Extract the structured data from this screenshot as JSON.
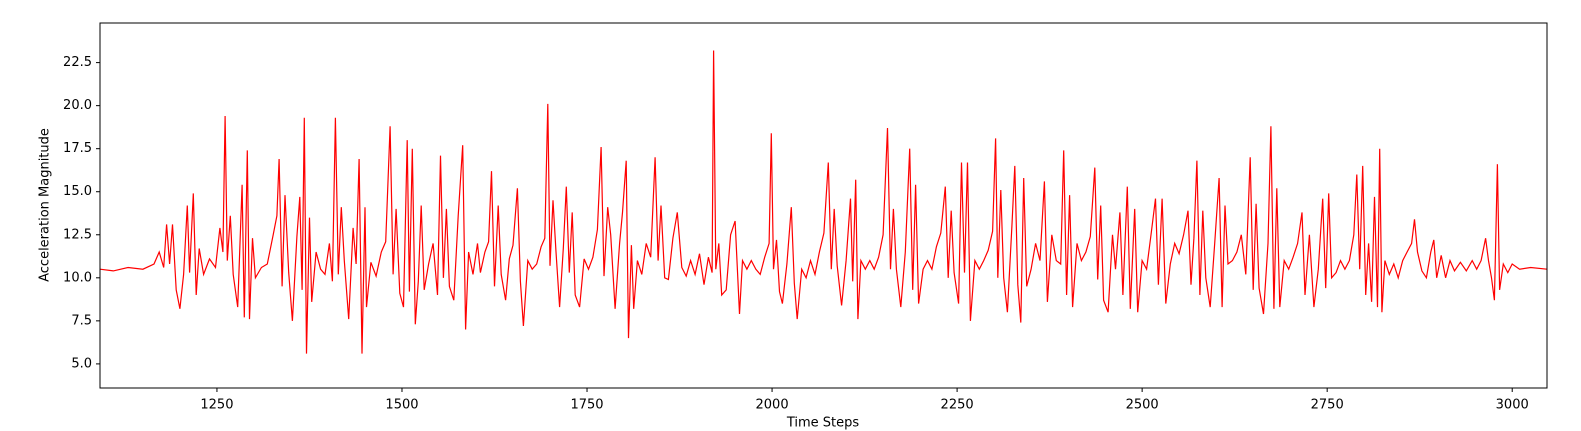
{
  "chart_data": {
    "type": "line",
    "x_label": "Time Steps",
    "y_label": "Acceleration Magnitude",
    "xlim": [
      1092,
      3047
    ],
    "ylim": [
      3.6,
      24.8
    ],
    "xticks": [
      1250,
      1500,
      1750,
      2000,
      2250,
      2500,
      2750,
      3000
    ],
    "yticks": [
      {
        "value": 5,
        "label": "5.0"
      },
      {
        "value": 7.5,
        "label": "7.5"
      },
      {
        "value": 10,
        "label": "10.0"
      },
      {
        "value": 12.5,
        "label": "12.5"
      },
      {
        "value": 15,
        "label": "15.0"
      },
      {
        "value": 17.5,
        "label": "17.5"
      },
      {
        "value": 20,
        "label": "20.0"
      },
      {
        "value": 22.5,
        "label": "22.5"
      }
    ],
    "series": [
      {
        "color": "#ff0000",
        "x": [
          1092,
          1110,
          1130,
          1150,
          1165,
          1172,
          1178,
          1182,
          1186,
          1190,
          1195,
          1200,
          1205,
          1210,
          1213,
          1218,
          1222,
          1226,
          1232,
          1240,
          1248,
          1254,
          1258,
          1261,
          1264,
          1268,
          1272,
          1278,
          1284,
          1287,
          1291,
          1294,
          1298,
          1302,
          1310,
          1318,
          1326,
          1331,
          1334,
          1338,
          1342,
          1347,
          1352,
          1358,
          1362,
          1365,
          1368,
          1371,
          1375,
          1378,
          1384,
          1390,
          1396,
          1402,
          1406,
          1410,
          1414,
          1418,
          1422,
          1428,
          1434,
          1438,
          1442,
          1446,
          1450,
          1452,
          1458,
          1465,
          1472,
          1478,
          1484,
          1488,
          1492,
          1497,
          1502,
          1507,
          1510,
          1514,
          1518,
          1522,
          1526,
          1530,
          1536,
          1542,
          1548,
          1552,
          1556,
          1560,
          1564,
          1570,
          1576,
          1582,
          1586,
          1590,
          1596,
          1602,
          1606,
          1612,
          1617,
          1621,
          1625,
          1630,
          1634,
          1640,
          1645,
          1650,
          1656,
          1660,
          1664,
          1670,
          1676,
          1682,
          1688,
          1693,
          1697,
          1700,
          1704,
          1708,
          1713,
          1718,
          1722,
          1726,
          1730,
          1734,
          1740,
          1746,
          1752,
          1758,
          1764,
          1769,
          1773,
          1778,
          1782,
          1788,
          1794,
          1798,
          1803,
          1806,
          1810,
          1813,
          1818,
          1824,
          1830,
          1836,
          1842,
          1846,
          1850,
          1855,
          1860,
          1866,
          1872,
          1878,
          1884,
          1890,
          1896,
          1902,
          1908,
          1914,
          1919,
          1921,
          1924,
          1928,
          1932,
          1938,
          1944,
          1950,
          1956,
          1960,
          1966,
          1972,
          1978,
          1984,
          1990,
          1996,
          1999,
          2002,
          2006,
          2010,
          2014,
          2020,
          2026,
          2030,
          2034,
          2040,
          2046,
          2052,
          2058,
          2064,
          2070,
          2076,
          2080,
          2084,
          2088,
          2094,
          2100,
          2106,
          2109,
          2113,
          2116,
          2120,
          2126,
          2132,
          2138,
          2144,
          2150,
          2156,
          2160,
          2164,
          2168,
          2174,
          2180,
          2186,
          2190,
          2194,
          2198,
          2204,
          2210,
          2216,
          2222,
          2228,
          2234,
          2238,
          2242,
          2246,
          2252,
          2256,
          2260,
          2264,
          2268,
          2274,
          2280,
          2286,
          2292,
          2298,
          2302,
          2305,
          2309,
          2313,
          2318,
          2324,
          2328,
          2332,
          2336,
          2340,
          2344,
          2350,
          2356,
          2362,
          2368,
          2372,
          2378,
          2384,
          2390,
          2394,
          2398,
          2402,
          2406,
          2412,
          2418,
          2424,
          2430,
          2436,
          2440,
          2444,
          2448,
          2454,
          2460,
          2464,
          2470,
          2474,
          2480,
          2484,
          2490,
          2494,
          2500,
          2506,
          2512,
          2518,
          2522,
          2527,
          2532,
          2538,
          2544,
          2550,
          2556,
          2562,
          2566,
          2570,
          2574,
          2578,
          2582,
          2586,
          2592,
          2598,
          2604,
          2608,
          2612,
          2616,
          2622,
          2628,
          2634,
          2640,
          2646,
          2650,
          2654,
          2658,
          2664,
          2670,
          2674,
          2678,
          2682,
          2686,
          2692,
          2698,
          2704,
          2710,
          2716,
          2720,
          2726,
          2732,
          2738,
          2744,
          2748,
          2752,
          2756,
          2762,
          2768,
          2774,
          2780,
          2786,
          2790,
          2794,
          2798,
          2802,
          2806,
          2810,
          2814,
          2818,
          2821,
          2824,
          2828,
          2834,
          2840,
          2846,
          2852,
          2858,
          2864,
          2868,
          2872,
          2878,
          2884,
          2890,
          2894,
          2898,
          2904,
          2910,
          2916,
          2922,
          2930,
          2938,
          2946,
          2952,
          2958,
          2964,
          2968,
          2972,
          2976,
          2980,
          2983,
          2988,
          2994,
          3000,
          3010,
          3025,
          3047
        ],
        "values": [
          10.5,
          10.4,
          10.6,
          10.5,
          10.8,
          11.5,
          10.6,
          13.1,
          10.8,
          13.1,
          9.3,
          8.2,
          10.2,
          14.2,
          10.3,
          14.9,
          9.0,
          11.7,
          10.2,
          11.1,
          10.6,
          12.9,
          11.5,
          19.4,
          11.0,
          13.6,
          10.2,
          8.3,
          15.4,
          7.7,
          17.4,
          7.6,
          12.3,
          10.0,
          10.6,
          10.8,
          12.5,
          13.6,
          16.9,
          9.5,
          14.8,
          10.3,
          7.5,
          12.4,
          14.7,
          9.3,
          19.3,
          5.6,
          13.5,
          8.6,
          11.5,
          10.5,
          10.2,
          12.0,
          9.8,
          19.3,
          10.2,
          14.1,
          11.0,
          7.6,
          12.9,
          10.8,
          16.9,
          5.6,
          14.1,
          8.3,
          10.9,
          10.1,
          11.5,
          12.1,
          18.8,
          10.2,
          14.0,
          9.1,
          8.3,
          18.0,
          9.2,
          17.5,
          7.3,
          9.8,
          14.2,
          9.3,
          10.8,
          12.0,
          9.0,
          17.1,
          10.0,
          14.0,
          9.5,
          8.7,
          13.6,
          17.7,
          7.0,
          11.5,
          10.2,
          12.0,
          10.3,
          11.5,
          12.1,
          16.2,
          9.5,
          14.2,
          10.2,
          8.7,
          11.1,
          11.9,
          15.2,
          9.8,
          7.2,
          11.0,
          10.5,
          10.8,
          11.8,
          12.3,
          20.1,
          10.7,
          14.5,
          11.6,
          8.3,
          11.7,
          15.3,
          10.3,
          13.8,
          9.0,
          8.3,
          11.1,
          10.5,
          11.2,
          12.8,
          17.6,
          10.1,
          14.1,
          12.5,
          8.2,
          12.0,
          13.8,
          16.8,
          6.5,
          11.9,
          8.2,
          11.0,
          10.2,
          12.0,
          11.2,
          17.0,
          11.0,
          14.2,
          10.0,
          9.9,
          12.3,
          13.8,
          10.6,
          10.1,
          11.0,
          10.2,
          11.4,
          9.6,
          11.2,
          10.3,
          23.2,
          10.5,
          12.0,
          9.0,
          9.3,
          12.5,
          13.3,
          7.9,
          11.0,
          10.5,
          11.0,
          10.5,
          10.2,
          11.2,
          12.0,
          18.4,
          10.5,
          12.2,
          9.2,
          8.5,
          10.8,
          14.1,
          9.7,
          7.6,
          10.5,
          10.0,
          11.0,
          10.2,
          11.5,
          12.6,
          16.7,
          10.5,
          14.0,
          10.7,
          8.4,
          11.0,
          14.6,
          9.8,
          15.7,
          7.6,
          11.0,
          10.5,
          11.0,
          10.5,
          11.2,
          12.5,
          18.7,
          10.5,
          14.0,
          10.5,
          8.3,
          11.5,
          17.5,
          9.3,
          15.4,
          8.5,
          10.5,
          11.0,
          10.5,
          11.8,
          12.6,
          15.3,
          10.0,
          13.9,
          10.3,
          8.5,
          16.7,
          10.3,
          16.7,
          7.5,
          11.0,
          10.5,
          11.0,
          11.6,
          12.7,
          18.1,
          10.0,
          15.1,
          10.0,
          8.0,
          13.0,
          16.5,
          9.6,
          7.4,
          15.8,
          9.5,
          10.5,
          12.0,
          11.0,
          15.6,
          8.6,
          12.5,
          11.0,
          10.8,
          17.4,
          9.0,
          14.8,
          8.3,
          12.0,
          11.0,
          11.5,
          12.4,
          16.4,
          9.9,
          14.2,
          8.7,
          8.0,
          12.5,
          10.5,
          13.8,
          9.0,
          15.3,
          8.2,
          14.0,
          8.0,
          11.0,
          10.5,
          12.5,
          14.6,
          9.6,
          14.6,
          8.5,
          10.8,
          12.0,
          11.4,
          12.5,
          13.9,
          9.6,
          12.3,
          16.8,
          9.0,
          13.9,
          10.0,
          8.3,
          12.0,
          15.8,
          8.3,
          14.2,
          10.8,
          11.0,
          11.5,
          12.5,
          10.2,
          17.0,
          9.3,
          14.3,
          9.4,
          7.9,
          12.0,
          18.8,
          8.2,
          15.2,
          8.3,
          11.0,
          10.5,
          11.2,
          12.0,
          13.8,
          9.0,
          12.5,
          8.3,
          10.5,
          14.6,
          9.4,
          14.9,
          10.0,
          10.3,
          11.0,
          10.5,
          11.0,
          12.5,
          16.0,
          10.5,
          16.5,
          9.0,
          12.0,
          8.6,
          14.7,
          8.3,
          17.5,
          8.0,
          11.0,
          10.2,
          10.8,
          10.0,
          11.0,
          11.5,
          12.0,
          13.4,
          11.5,
          10.4,
          10.0,
          11.5,
          12.2,
          10.0,
          11.3,
          10.0,
          11.0,
          10.4,
          10.9,
          10.4,
          11.0,
          10.5,
          11.0,
          12.3,
          11.0,
          10.0,
          8.7,
          16.6,
          9.3,
          10.8,
          10.3,
          10.8,
          10.5,
          10.6,
          10.5
        ]
      }
    ]
  }
}
